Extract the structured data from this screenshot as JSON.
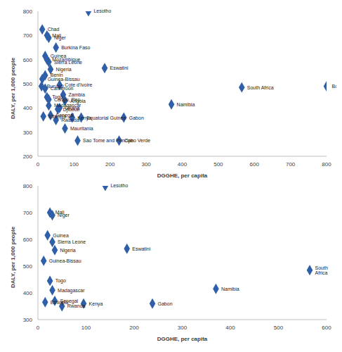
{
  "chart_data": [
    {
      "type": "scatter",
      "x_label": "DGGHE, per capita",
      "y_label": "DALY, per 1,000 people",
      "color": "#2e5fa8",
      "marker": "diamond",
      "grid": false,
      "xlim": [
        0,
        800
      ],
      "xticks": [
        0,
        100,
        200,
        300,
        400,
        500,
        600,
        700,
        800
      ],
      "ylim": [
        200,
        800
      ],
      "yticks": [
        200,
        300,
        400,
        500,
        600,
        700,
        800
      ],
      "labels": [
        "Lesotho",
        "Chad",
        "Mali",
        "Niger",
        "Burkina Faso",
        "Guinea",
        "Mozambique",
        "Sierra Leone",
        "Nigeria",
        "Benin",
        "Guinea-Bissau",
        "Burundi",
        "Cote d'Ivoire",
        "Cameroon",
        "Zambia",
        "Togo",
        "Congo, Rep.",
        "Angola",
        "Madagascar",
        "Ghana",
        "Djibouti",
        "Senegal",
        "Ethiopia",
        "Kenya",
        "Rwanda",
        "Mauritania",
        "Equatorial Guinea",
        "Gabon",
        "Sao Tome and Principe",
        "Cabo Verde",
        "Eswatini",
        "Namibia",
        "South Africa",
        "Botswana"
      ],
      "x": [
        140,
        12,
        25,
        30,
        50,
        20,
        25,
        30,
        35,
        20,
        12,
        10,
        60,
        20,
        70,
        25,
        30,
        75,
        30,
        60,
        55,
        35,
        15,
        95,
        50,
        75,
        120,
        238,
        110,
        225,
        185,
        370,
        565,
        800
      ],
      "values": [
        800,
        725,
        700,
        690,
        650,
        615,
        600,
        590,
        560,
        535,
        520,
        490,
        495,
        480,
        455,
        445,
        435,
        430,
        410,
        400,
        395,
        370,
        365,
        360,
        350,
        315,
        360,
        360,
        265,
        265,
        565,
        415,
        485,
        490
      ]
    },
    {
      "type": "scatter",
      "x_label": "DGGHE, per capita",
      "y_label": "DALY, per 1,000 people",
      "color": "#2e5fa8",
      "marker": "diamond",
      "grid": false,
      "xlim": [
        0,
        600
      ],
      "xticks": [
        0,
        100,
        200,
        300,
        400,
        500,
        600
      ],
      "ylim": [
        300,
        800
      ],
      "yticks": [
        300,
        400,
        500,
        600,
        700,
        800
      ],
      "labels": [
        "Lesotho",
        "Mali",
        "Niger",
        "Guinea",
        "Sierra Leone",
        "Nigeria",
        "Guinea-Bissau",
        "Togo",
        "Madagascar",
        "Ethiopia",
        "Senegal",
        "Kenya",
        "Rwanda",
        "Eswatini",
        "South Africa",
        "Namibia",
        "Gabon"
      ],
      "x": [
        140,
        25,
        30,
        20,
        30,
        35,
        12,
        25,
        30,
        15,
        35,
        95,
        50,
        185,
        565,
        370,
        238
      ],
      "values": [
        800,
        700,
        690,
        615,
        590,
        560,
        520,
        445,
        410,
        365,
        370,
        360,
        350,
        565,
        485,
        415,
        360
      ]
    }
  ]
}
